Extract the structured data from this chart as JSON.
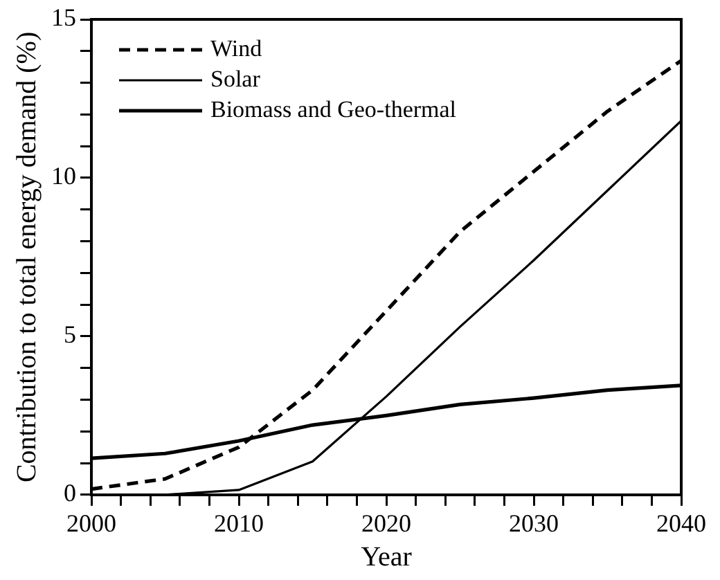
{
  "chart_data": {
    "type": "line",
    "xlabel": "Year",
    "ylabel": "Contribution to total energy demand (%)",
    "x": [
      2000,
      2005,
      2010,
      2015,
      2020,
      2025,
      2030,
      2035,
      2040
    ],
    "series": [
      {
        "name": "Wind",
        "color": "#000000",
        "line_style": "dashed",
        "values": [
          0.18,
          0.5,
          1.5,
          3.3,
          5.8,
          8.3,
          10.2,
          12.1,
          13.7
        ]
      },
      {
        "name": "Solar",
        "color": "#000000",
        "line_style": "solid",
        "values": [
          0,
          0,
          0.15,
          1.05,
          3.1,
          5.3,
          7.4,
          9.6,
          11.8
        ]
      },
      {
        "name": "Biomass and Geo-thermal",
        "color": "#000000",
        "line_style": "solid",
        "values": [
          1.15,
          1.3,
          1.7,
          2.2,
          2.5,
          2.85,
          3.05,
          3.3,
          3.45
        ]
      }
    ],
    "xlim": [
      2000,
      2040
    ],
    "xticks": [
      2000,
      {
        "value": 2002,
        "label": null
      },
      {
        "value": 2004,
        "label": null
      },
      {
        "value": 2006,
        "label": null
      },
      {
        "value": 2008,
        "label": null
      },
      2010,
      {
        "value": 2012,
        "label": null
      },
      {
        "value": 2014,
        "label": null
      },
      {
        "value": 2016,
        "label": null
      },
      {
        "value": 2018,
        "label": null
      },
      2020,
      {
        "value": 2022,
        "label": null
      },
      {
        "value": 2024,
        "label": null
      },
      {
        "value": 2026,
        "label": null
      },
      {
        "value": 2028,
        "label": null
      },
      2030,
      {
        "value": 2032,
        "label": null
      },
      {
        "value": 2034,
        "label": null
      },
      {
        "value": 2036,
        "label": null
      },
      {
        "value": 2038,
        "label": null
      },
      2040
    ],
    "ylim": [
      0,
      15
    ],
    "yticks": [
      0,
      {
        "value": 1,
        "label": null
      },
      {
        "value": 2,
        "label": null
      },
      {
        "value": 3,
        "label": null
      },
      {
        "value": 4,
        "label": null
      },
      5,
      {
        "value": 6,
        "label": null
      },
      {
        "value": 7,
        "label": null
      },
      {
        "value": 8,
        "label": null
      },
      {
        "value": 9,
        "label": null
      },
      10,
      {
        "value": 11,
        "label": null
      },
      {
        "value": 12,
        "label": null
      },
      {
        "value": 13,
        "label": null
      },
      {
        "value": 14,
        "label": null
      },
      15
    ],
    "grid": false,
    "legend": "top left",
    "marker": "none"
  }
}
